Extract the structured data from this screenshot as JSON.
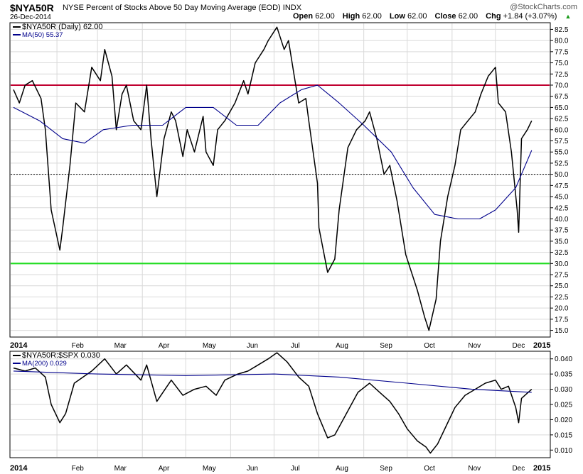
{
  "header": {
    "symbol": "$NYA50R",
    "description": "NYSE Percent of Stocks Above 50 Day Moving Average (EOD) INDX",
    "date": "26-Dec-2014",
    "brand": "@StockCharts.com",
    "ohlc": [
      {
        "label": "Open",
        "value": "62.00"
      },
      {
        "label": "High",
        "value": "62.00"
      },
      {
        "label": "Low",
        "value": "62.00"
      },
      {
        "label": "Close",
        "value": "62.00"
      },
      {
        "label": "Chg",
        "value": "+1.84 (+3.07%)"
      }
    ],
    "chg_icon": "up-triangle-icon"
  },
  "colors": {
    "price_line": "#000000",
    "ma_line": "#00008b",
    "upper_line": "#c00030",
    "lower_line": "#22dd22",
    "mid_line": "#000000",
    "grid": "#d9d9d9"
  },
  "chart_data": [
    {
      "type": "line",
      "legend": [
        {
          "label": "$NYA50R (Daily) 62.00",
          "series": "price"
        },
        {
          "label": "MA(50) 55.37",
          "series": "ma50"
        }
      ],
      "x_tick_labels": [
        "2014",
        "Feb",
        "Mar",
        "Apr",
        "May",
        "Jun",
        "Jul",
        "Aug",
        "Sep",
        "Oct",
        "Nov",
        "Dec",
        "2015"
      ],
      "y_ticks": [
        "15.0",
        "17.5",
        "20.0",
        "22.5",
        "25.0",
        "27.5",
        "30.0",
        "32.5",
        "35.0",
        "37.5",
        "40.0",
        "42.5",
        "45.0",
        "47.5",
        "50.0",
        "52.5",
        "55.0",
        "57.5",
        "60.0",
        "62.5",
        "65.0",
        "67.5",
        "70.0",
        "72.5",
        "75.0",
        "77.5",
        "80.0",
        "82.5"
      ],
      "ylim": [
        13.5,
        84
      ],
      "reference_lines": [
        {
          "value": 70,
          "style": "upper"
        },
        {
          "value": 50,
          "style": "mid"
        },
        {
          "value": 30,
          "style": "lower"
        }
      ],
      "series": [
        {
          "name": "$NYA50R",
          "points": [
            [
              "2014-01-02",
              69
            ],
            [
              "2014-01-06",
              66
            ],
            [
              "2014-01-10",
              70
            ],
            [
              "2014-01-15",
              71
            ],
            [
              "2014-01-21",
              67
            ],
            [
              "2014-01-24",
              60
            ],
            [
              "2014-01-28",
              42
            ],
            [
              "2014-02-03",
              33
            ],
            [
              "2014-02-05",
              38
            ],
            [
              "2014-02-10",
              52
            ],
            [
              "2014-02-14",
              66
            ],
            [
              "2014-02-20",
              64
            ],
            [
              "2014-02-25",
              74
            ],
            [
              "2014-03-03",
              71
            ],
            [
              "2014-03-06",
              78
            ],
            [
              "2014-03-11",
              72
            ],
            [
              "2014-03-14",
              60
            ],
            [
              "2014-03-18",
              68
            ],
            [
              "2014-03-21",
              70
            ],
            [
              "2014-03-26",
              62
            ],
            [
              "2014-03-31",
              60
            ],
            [
              "2014-04-04",
              70
            ],
            [
              "2014-04-07",
              58
            ],
            [
              "2014-04-11",
              45
            ],
            [
              "2014-04-16",
              58
            ],
            [
              "2014-04-21",
              64
            ],
            [
              "2014-04-24",
              62
            ],
            [
              "2014-04-29",
              54
            ],
            [
              "2014-05-02",
              60
            ],
            [
              "2014-05-07",
              55
            ],
            [
              "2014-05-13",
              63
            ],
            [
              "2014-05-15",
              55
            ],
            [
              "2014-05-20",
              52
            ],
            [
              "2014-05-23",
              60
            ],
            [
              "2014-05-28",
              62
            ],
            [
              "2014-06-04",
              66
            ],
            [
              "2014-06-10",
              71
            ],
            [
              "2014-06-13",
              68
            ],
            [
              "2014-06-18",
              75
            ],
            [
              "2014-06-24",
              78
            ],
            [
              "2014-06-27",
              80
            ],
            [
              "2014-07-03",
              83
            ],
            [
              "2014-07-08",
              78
            ],
            [
              "2014-07-11",
              80
            ],
            [
              "2014-07-15",
              72
            ],
            [
              "2014-07-18",
              66
            ],
            [
              "2014-07-23",
              67
            ],
            [
              "2014-07-25",
              62
            ],
            [
              "2014-07-31",
              48
            ],
            [
              "2014-08-01",
              38
            ],
            [
              "2014-08-07",
              28
            ],
            [
              "2014-08-12",
              31
            ],
            [
              "2014-08-15",
              42
            ],
            [
              "2014-08-21",
              56
            ],
            [
              "2014-08-27",
              60
            ],
            [
              "2014-09-02",
              62
            ],
            [
              "2014-09-05",
              64
            ],
            [
              "2014-09-10",
              58
            ],
            [
              "2014-09-15",
              50
            ],
            [
              "2014-09-19",
              52
            ],
            [
              "2014-09-24",
              44
            ],
            [
              "2014-09-30",
              32
            ],
            [
              "2014-10-03",
              29
            ],
            [
              "2014-10-08",
              24
            ],
            [
              "2014-10-13",
              18
            ],
            [
              "2014-10-16",
              15
            ],
            [
              "2014-10-21",
              22
            ],
            [
              "2014-10-24",
              35
            ],
            [
              "2014-10-29",
              45
            ],
            [
              "2014-11-03",
              52
            ],
            [
              "2014-11-07",
              60
            ],
            [
              "2014-11-12",
              62
            ],
            [
              "2014-11-17",
              64
            ],
            [
              "2014-11-21",
              68
            ],
            [
              "2014-11-26",
              72
            ],
            [
              "2014-12-01",
              74
            ],
            [
              "2014-12-03",
              66
            ],
            [
              "2014-12-08",
              64
            ],
            [
              "2014-12-12",
              55
            ],
            [
              "2014-12-16",
              42
            ],
            [
              "2014-12-17",
              37
            ],
            [
              "2014-12-19",
              58
            ],
            [
              "2014-12-23",
              60
            ],
            [
              "2014-12-26",
              62
            ]
          ]
        },
        {
          "name": "MA(50)",
          "points": [
            [
              "2014-01-02",
              65
            ],
            [
              "2014-01-20",
              62
            ],
            [
              "2014-02-05",
              58
            ],
            [
              "2014-02-20",
              57
            ],
            [
              "2014-03-05",
              60
            ],
            [
              "2014-03-25",
              61
            ],
            [
              "2014-04-15",
              61
            ],
            [
              "2014-05-01",
              65
            ],
            [
              "2014-05-20",
              65
            ],
            [
              "2014-06-05",
              61
            ],
            [
              "2014-06-20",
              61
            ],
            [
              "2014-07-05",
              66
            ],
            [
              "2014-07-20",
              69
            ],
            [
              "2014-07-31",
              70
            ],
            [
              "2014-08-15",
              66
            ],
            [
              "2014-09-01",
              61
            ],
            [
              "2014-09-20",
              55
            ],
            [
              "2014-10-05",
              47
            ],
            [
              "2014-10-20",
              41
            ],
            [
              "2014-11-05",
              40
            ],
            [
              "2014-11-20",
              40
            ],
            [
              "2014-12-01",
              42
            ],
            [
              "2014-12-15",
              47
            ],
            [
              "2014-12-26",
              55.37
            ]
          ]
        }
      ]
    },
    {
      "type": "line",
      "legend": [
        {
          "label": "$NYA50R:$SPX 0.030",
          "series": "ratio"
        },
        {
          "label": "MA(200) 0.029",
          "series": "ma200"
        }
      ],
      "x_tick_labels": [
        "2014",
        "Feb",
        "Mar",
        "Apr",
        "May",
        "Jun",
        "Jul",
        "Aug",
        "Sep",
        "Oct",
        "Nov",
        "Dec",
        "2015"
      ],
      "y_ticks": [
        "0.010",
        "0.015",
        "0.020",
        "0.025",
        "0.030",
        "0.035",
        "0.040"
      ],
      "ylim": [
        0.0075,
        0.0425
      ],
      "series": [
        {
          "name": "$NYA50R:$SPX",
          "points": [
            [
              "2014-01-02",
              0.037
            ],
            [
              "2014-01-10",
              0.036
            ],
            [
              "2014-01-17",
              0.037
            ],
            [
              "2014-01-24",
              0.034
            ],
            [
              "2014-01-28",
              0.025
            ],
            [
              "2014-02-03",
              0.019
            ],
            [
              "2014-02-07",
              0.022
            ],
            [
              "2014-02-13",
              0.032
            ],
            [
              "2014-02-25",
              0.036
            ],
            [
              "2014-03-06",
              0.04
            ],
            [
              "2014-03-14",
              0.035
            ],
            [
              "2014-03-21",
              0.038
            ],
            [
              "2014-03-31",
              0.033
            ],
            [
              "2014-04-04",
              0.038
            ],
            [
              "2014-04-11",
              0.026
            ],
            [
              "2014-04-21",
              0.033
            ],
            [
              "2014-04-29",
              0.028
            ],
            [
              "2014-05-07",
              0.03
            ],
            [
              "2014-05-15",
              0.031
            ],
            [
              "2014-05-22",
              0.028
            ],
            [
              "2014-05-28",
              0.033
            ],
            [
              "2014-06-06",
              0.035
            ],
            [
              "2014-06-13",
              0.036
            ],
            [
              "2014-06-20",
              0.038
            ],
            [
              "2014-06-27",
              0.04
            ],
            [
              "2014-07-03",
              0.042
            ],
            [
              "2014-07-10",
              0.039
            ],
            [
              "2014-07-18",
              0.034
            ],
            [
              "2014-07-25",
              0.031
            ],
            [
              "2014-07-31",
              0.022
            ],
            [
              "2014-08-07",
              0.014
            ],
            [
              "2014-08-12",
              0.015
            ],
            [
              "2014-08-20",
              0.022
            ],
            [
              "2014-08-28",
              0.029
            ],
            [
              "2014-09-05",
              0.032
            ],
            [
              "2014-09-12",
              0.029
            ],
            [
              "2014-09-19",
              0.026
            ],
            [
              "2014-09-25",
              0.022
            ],
            [
              "2014-10-01",
              0.017
            ],
            [
              "2014-10-08",
              0.013
            ],
            [
              "2014-10-14",
              0.011
            ],
            [
              "2014-10-17",
              0.009
            ],
            [
              "2014-10-22",
              0.012
            ],
            [
              "2014-10-28",
              0.018
            ],
            [
              "2014-11-03",
              0.024
            ],
            [
              "2014-11-10",
              0.028
            ],
            [
              "2014-11-17",
              0.03
            ],
            [
              "2014-11-24",
              0.032
            ],
            [
              "2014-12-01",
              0.033
            ],
            [
              "2014-12-05",
              0.03
            ],
            [
              "2014-12-10",
              0.031
            ],
            [
              "2014-12-15",
              0.024
            ],
            [
              "2014-12-17",
              0.019
            ],
            [
              "2014-12-19",
              0.027
            ],
            [
              "2014-12-26",
              0.03
            ]
          ]
        },
        {
          "name": "MA(200)",
          "points": [
            [
              "2014-01-02",
              0.036
            ],
            [
              "2014-03-01",
              0.035
            ],
            [
              "2014-05-01",
              0.0345
            ],
            [
              "2014-07-01",
              0.035
            ],
            [
              "2014-08-15",
              0.034
            ],
            [
              "2014-10-01",
              0.032
            ],
            [
              "2014-11-15",
              0.03
            ],
            [
              "2014-12-26",
              0.029
            ]
          ]
        }
      ]
    }
  ]
}
